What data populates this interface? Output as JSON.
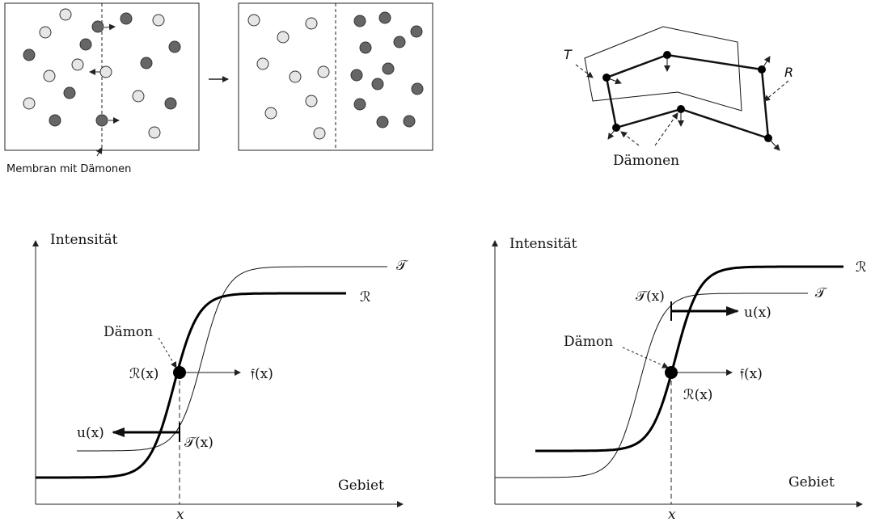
{
  "maxwell": {
    "caption": "Membran mit Dämonen"
  },
  "contour": {
    "template_label": "T",
    "reference_label": "R",
    "demons_label": "Dämonen"
  },
  "plots": [
    {
      "y_axis": "Intensität",
      "x_axis": "Gebiet",
      "x_label": "x",
      "template_curve": "𝒯",
      "reference_curve": "ℛ",
      "demon_label": "Dämon",
      "reference_point": "ℛ(x)",
      "force": "𝔣(x)",
      "displacement": "u(x)",
      "template_point": "𝒯(x)"
    },
    {
      "y_axis": "Intensität",
      "x_axis": "Gebiet",
      "x_label": "x",
      "template_curve": "𝒯",
      "reference_curve": "ℛ",
      "demon_label": "Dämon",
      "reference_point": "ℛ(x)",
      "force": "𝔣(x)",
      "displacement": "u(x)",
      "template_point": "𝒯(x)"
    }
  ]
}
